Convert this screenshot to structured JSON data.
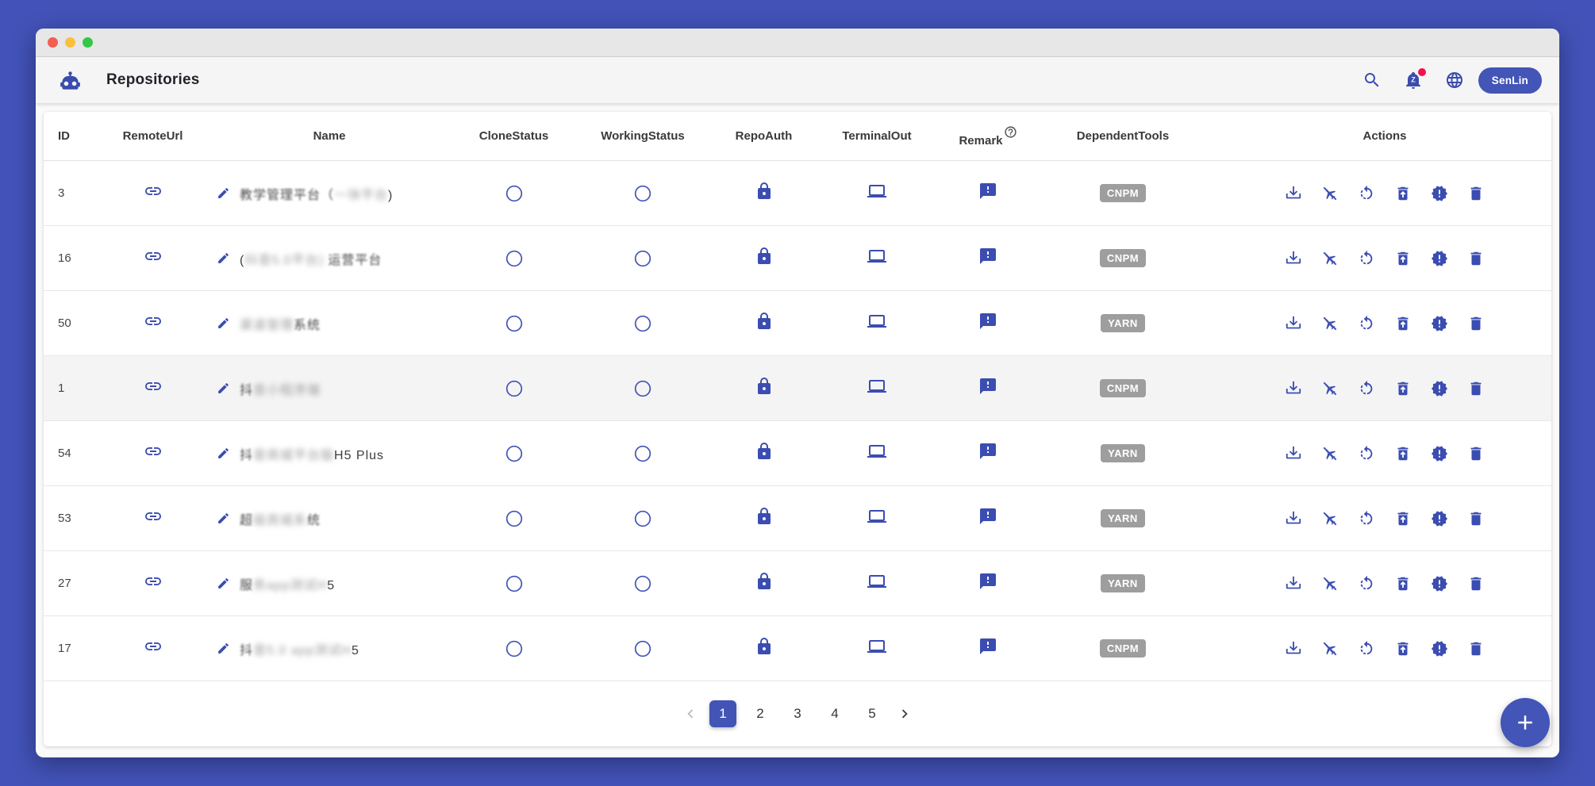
{
  "colors": {
    "primary": "#3f51b5",
    "outer_background": "#4252b8",
    "badge_gray": "#9e9e9e",
    "notification_dot": "#f2114d",
    "traffic_red": "#f25e52",
    "traffic_yellow": "#fcbe3f",
    "traffic_green": "#33c748"
  },
  "app_bar": {
    "logo_icon": "robot-icon",
    "title": "Repositories",
    "search_icon": "magnify-icon",
    "notifications_icon": "bell-sleep-icon",
    "notifications_has_unread_dot": true,
    "language_icon": "globe-icon",
    "user_button_label": "SenLin"
  },
  "table": {
    "columns": [
      "ID",
      "RemoteUrl",
      "Name",
      "CloneStatus",
      "WorkingStatus",
      "RepoAuth",
      "TerminalOut",
      "Remark",
      "DependentTools",
      "Actions"
    ],
    "remark_help_icon": "help-circle-outline-icon",
    "row_icons": {
      "remote_url": "link-icon",
      "edit_name": "pencil-icon",
      "clone_status": "circle-outline-icon",
      "working_status": "circle-outline-icon",
      "repo_auth": "lock-icon",
      "terminal_out": "laptop-icon",
      "remark": "message-alert-icon"
    },
    "action_icons": [
      "download-icon",
      "airplane-off-icon",
      "restore-icon",
      "delete-restore-icon",
      "alert-decagram-icon",
      "delete-icon"
    ],
    "rows": [
      {
        "id": "3",
        "tool": "CNPM",
        "highlighted": false,
        "name_segments": [
          {
            "text": "教学管理平台（",
            "blur": 1
          },
          {
            "text": "一块平台",
            "blur": 2
          },
          {
            "text": ")",
            "blur": 0
          }
        ]
      },
      {
        "id": "16",
        "tool": "CNPM",
        "highlighted": false,
        "name_segments": [
          {
            "text": "(",
            "blur": 0
          },
          {
            "text": "抖音5.0平台)",
            "blur": 2
          },
          {
            "text": " 运营平台",
            "blur": 1
          }
        ]
      },
      {
        "id": "50",
        "tool": "YARN",
        "highlighted": false,
        "name_segments": [
          {
            "text": "渠道管理",
            "blur": 2
          },
          {
            "text": "系统",
            "blur": 1
          }
        ]
      },
      {
        "id": "1",
        "tool": "CNPM",
        "highlighted": true,
        "name_segments": [
          {
            "text": "抖",
            "blur": 1
          },
          {
            "text": "音小程序端",
            "blur": 2
          }
        ]
      },
      {
        "id": "54",
        "tool": "YARN",
        "highlighted": false,
        "name_segments": [
          {
            "text": "抖",
            "blur": 1
          },
          {
            "text": "音商城平台版",
            "blur": 2
          },
          {
            "text": "H5 Plus",
            "blur": 0
          }
        ]
      },
      {
        "id": "53",
        "tool": "YARN",
        "highlighted": false,
        "name_segments": [
          {
            "text": "超",
            "blur": 1
          },
          {
            "text": "级商城系",
            "blur": 2
          },
          {
            "text": "统",
            "blur": 1
          }
        ]
      },
      {
        "id": "27",
        "tool": "YARN",
        "highlighted": false,
        "name_segments": [
          {
            "text": "服",
            "blur": 1
          },
          {
            "text": "务app测试H",
            "blur": 2
          },
          {
            "text": "5",
            "blur": 0
          }
        ]
      },
      {
        "id": "17",
        "tool": "CNPM",
        "highlighted": false,
        "name_segments": [
          {
            "text": "抖",
            "blur": 1
          },
          {
            "text": "音5.0 app测试H",
            "blur": 2
          },
          {
            "text": "5",
            "blur": 0
          }
        ]
      }
    ]
  },
  "pagination": {
    "prev_icon": "chevron-left-icon",
    "prev_disabled": true,
    "pages": [
      "1",
      "2",
      "3",
      "4",
      "5"
    ],
    "active_page": "1",
    "next_icon": "chevron-right-icon"
  },
  "fab": {
    "icon": "plus-icon"
  }
}
